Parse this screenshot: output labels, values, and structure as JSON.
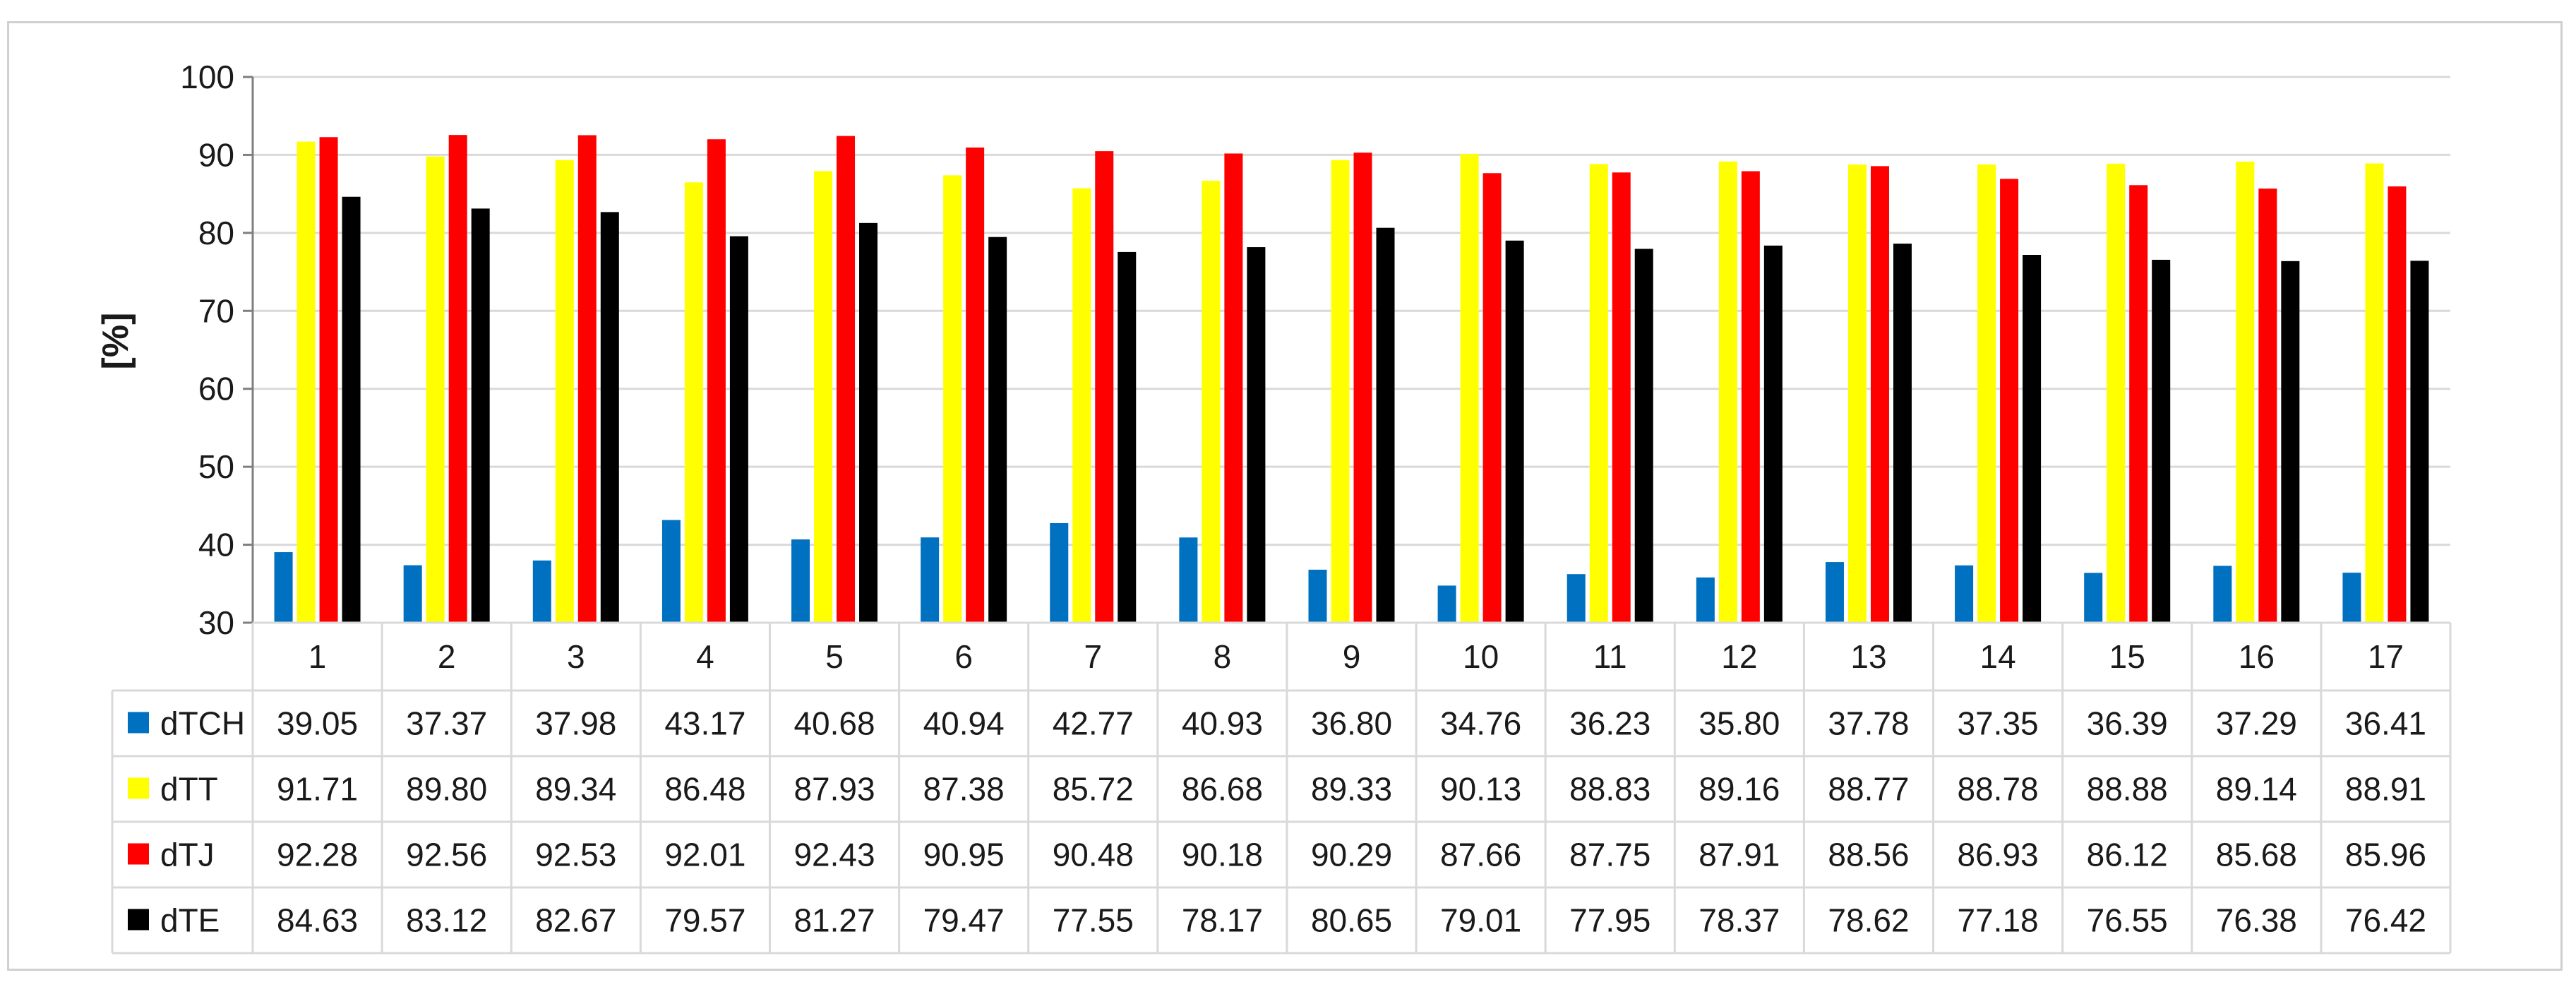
{
  "chart_data": {
    "type": "bar",
    "title": "",
    "xlabel": "",
    "ylabel": "[%]",
    "ylim": [
      30,
      100
    ],
    "yticks": [
      30,
      40,
      50,
      60,
      70,
      80,
      90,
      100
    ],
    "grid": true,
    "legend": "data table below plot",
    "categories": [
      "1",
      "2",
      "3",
      "4",
      "5",
      "6",
      "7",
      "8",
      "9",
      "10",
      "11",
      "12",
      "13",
      "14",
      "15",
      "16",
      "17"
    ],
    "series": [
      {
        "name": "dTCH",
        "color": "#0070c0",
        "values": [
          "39.05",
          "37.37",
          "37.98",
          "43.17",
          "40.68",
          "40.94",
          "42.77",
          "40.93",
          "36.80",
          "34.76",
          "36.23",
          "35.80",
          "37.78",
          "37.35",
          "36.39",
          "37.29",
          "36.41"
        ]
      },
      {
        "name": "dTT",
        "color": "#ffff00",
        "values": [
          "91.71",
          "89.80",
          "89.34",
          "86.48",
          "87.93",
          "87.38",
          "85.72",
          "86.68",
          "89.33",
          "90.13",
          "88.83",
          "89.16",
          "88.77",
          "88.78",
          "88.88",
          "89.14",
          "88.91"
        ]
      },
      {
        "name": "dTJ",
        "color": "#ff0000",
        "values": [
          "92.28",
          "92.56",
          "92.53",
          "92.01",
          "92.43",
          "90.95",
          "90.48",
          "90.18",
          "90.29",
          "87.66",
          "87.75",
          "87.91",
          "88.56",
          "86.93",
          "86.12",
          "85.68",
          "85.96"
        ]
      },
      {
        "name": "dTE",
        "color": "#000000",
        "values": [
          "84.63",
          "83.12",
          "82.67",
          "79.57",
          "81.27",
          "79.47",
          "77.55",
          "78.17",
          "80.65",
          "79.01",
          "77.95",
          "78.37",
          "78.62",
          "77.18",
          "76.55",
          "76.38",
          "76.42"
        ]
      }
    ]
  }
}
